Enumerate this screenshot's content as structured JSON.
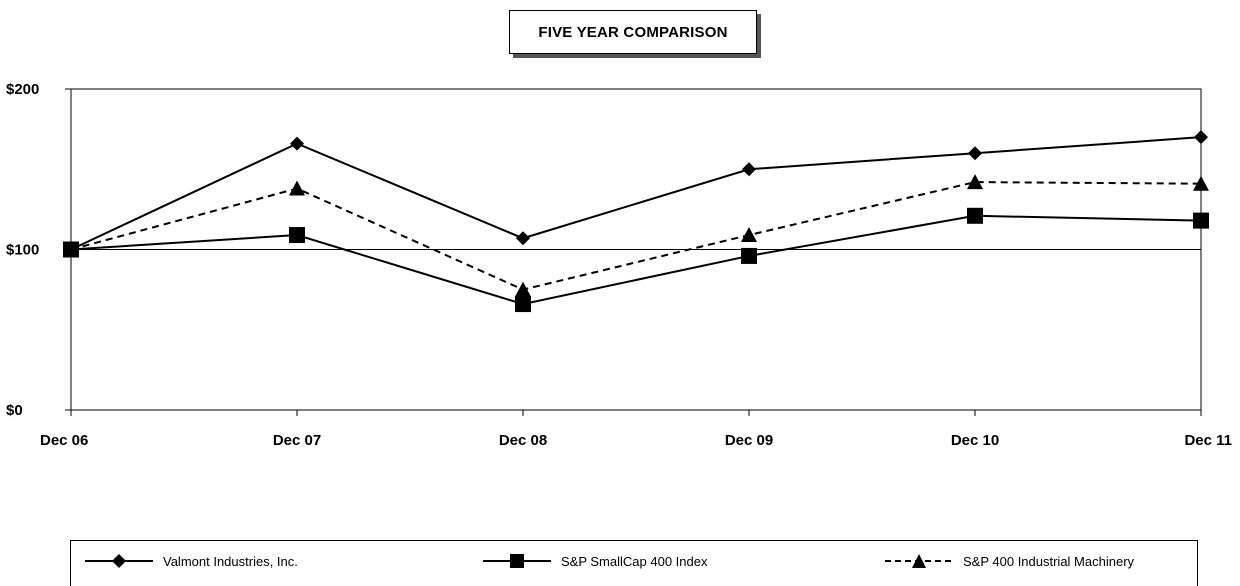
{
  "chart_data": {
    "type": "line",
    "title": "FIVE YEAR COMPARISON",
    "categories": [
      "Dec 06",
      "Dec 07",
      "Dec 08",
      "Dec 09",
      "Dec 10",
      "Dec 11"
    ],
    "y_ticks": [
      "$0",
      "$100",
      "$200"
    ],
    "ylim": [
      0,
      200
    ],
    "reference_line": 100,
    "grid": false,
    "legend_position": "bottom",
    "series": [
      {
        "name": "Valmont Industries, Inc.",
        "marker": "diamond",
        "dash": "solid",
        "values": [
          100,
          166,
          107,
          150,
          160,
          170
        ]
      },
      {
        "name": "S&P SmallCap 400 Index",
        "marker": "square",
        "dash": "solid",
        "values": [
          100,
          109,
          66,
          96,
          121,
          118
        ]
      },
      {
        "name": "S&P 400 Industrial Machinery",
        "marker": "triangle",
        "dash": "dashed",
        "values": [
          100,
          138,
          75,
          109,
          142,
          141
        ]
      }
    ]
  }
}
